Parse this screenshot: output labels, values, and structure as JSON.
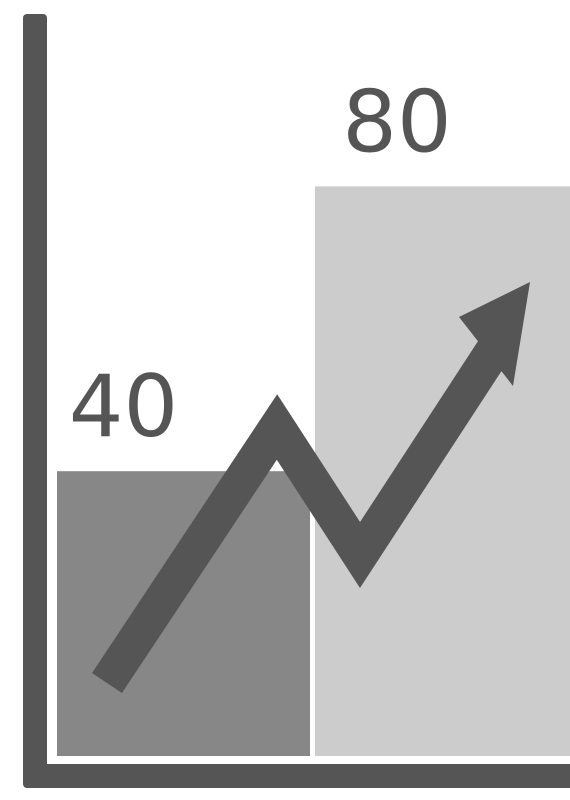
{
  "chart_data": {
    "type": "bar",
    "title": "",
    "xlabel": "",
    "ylabel": "",
    "categories": [
      "",
      ""
    ],
    "values": [
      40,
      80
    ],
    "value_labels": [
      "40",
      "80"
    ],
    "ylim": [
      0,
      100
    ],
    "grid": false,
    "legend": "none",
    "trend_arrow": {
      "direction": "up",
      "shape": "zigzag"
    },
    "colors": {
      "axis": "#555555",
      "bar_1": "#878787",
      "bar_2": "#cccccc",
      "arrow": "#555555",
      "label": "#555555"
    }
  }
}
